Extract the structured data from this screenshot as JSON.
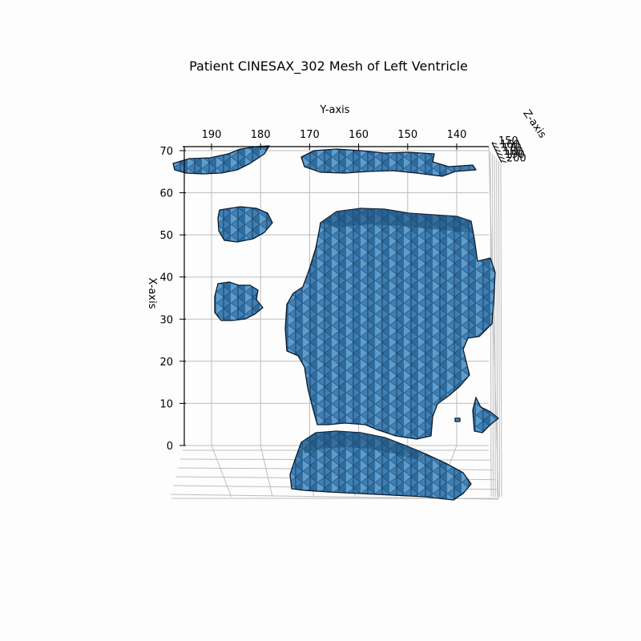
{
  "chart_data": {
    "type": "3d-mesh",
    "title": "Patient CINESAX_302 Mesh of Left Ventricle",
    "xlabel": "X-axis",
    "ylabel": "Y-axis",
    "zlabel": "Z-axis",
    "x_ticks": [
      "0",
      "10",
      "20",
      "30",
      "40",
      "50",
      "60",
      "70"
    ],
    "y_ticks": [
      "190",
      "180",
      "170",
      "160",
      "150",
      "140"
    ],
    "z_ticks": [
      "150",
      "160",
      "170",
      "180",
      "190",
      "200"
    ],
    "xlim": [
      0,
      70
    ],
    "ylim": [
      196,
      134
    ],
    "zlim": [
      150,
      200
    ],
    "colors": {
      "face": "#4f8fc2",
      "edge": "#0b1a2a",
      "grid": "#bdbdbd",
      "background": "#fdfdfd"
    },
    "grid": true
  }
}
